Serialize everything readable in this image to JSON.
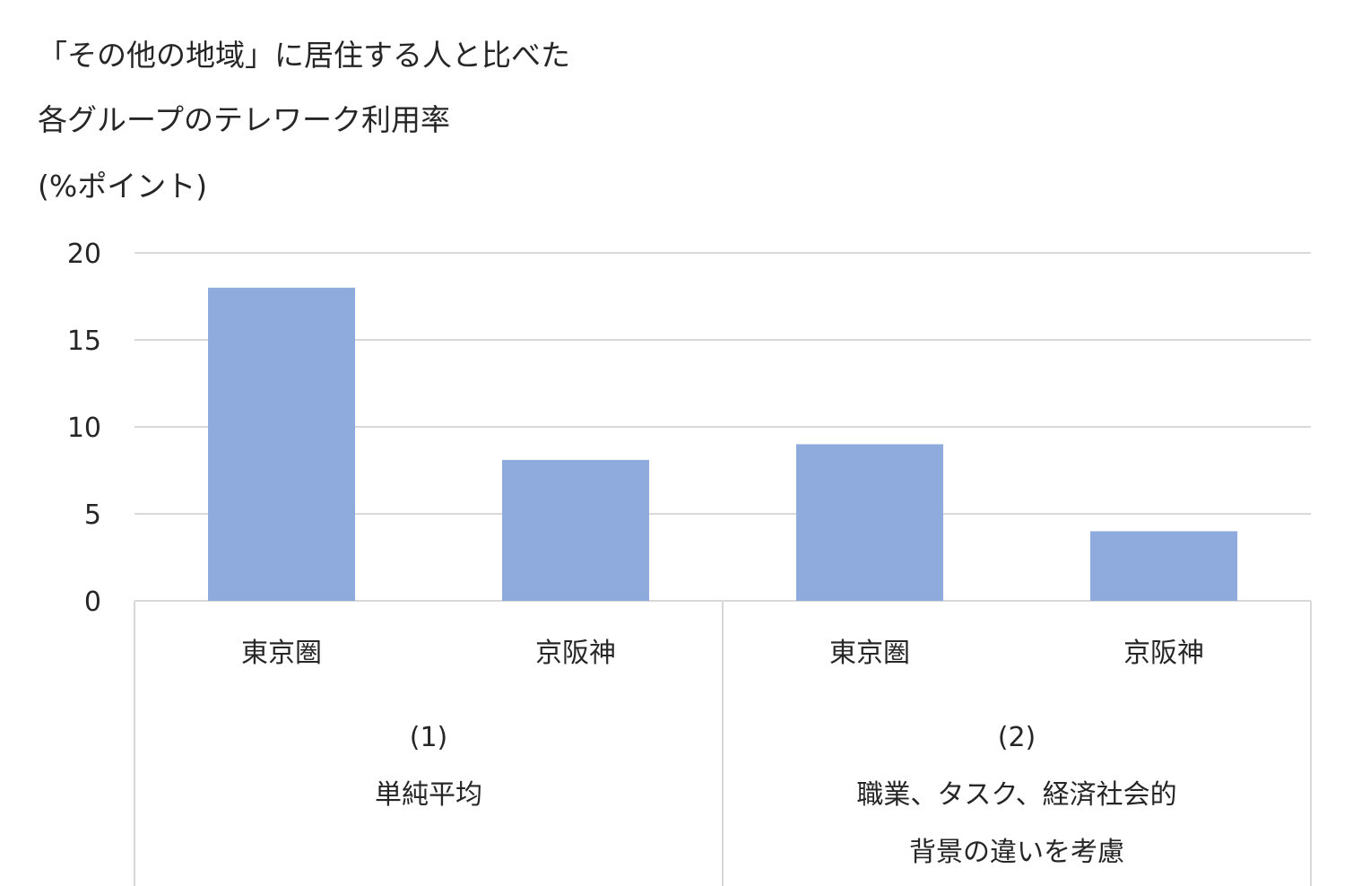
{
  "chart_data": {
    "type": "bar",
    "title_lines": [
      "「その他の地域」に居住する人と比べた",
      "各グループのテレワーク利用率",
      "(%ポイント)"
    ],
    "groups": [
      {
        "label_lines": [
          "(1)",
          "単純平均"
        ],
        "categories": [
          "東京圏",
          "京阪神"
        ],
        "values": [
          18,
          8.1
        ]
      },
      {
        "label_lines": [
          "(2)",
          "職業、タスク、経済社会的",
          "背景の違いを考慮"
        ],
        "categories": [
          "東京圏",
          "京阪神"
        ],
        "values": [
          9,
          4
        ]
      }
    ],
    "ylim": [
      0,
      20
    ],
    "yticks": [
      0,
      5,
      10,
      15,
      20
    ],
    "grid": true,
    "legend": "none",
    "bar_color": "#8FAADC",
    "grid_color": "#D9D9D9"
  }
}
